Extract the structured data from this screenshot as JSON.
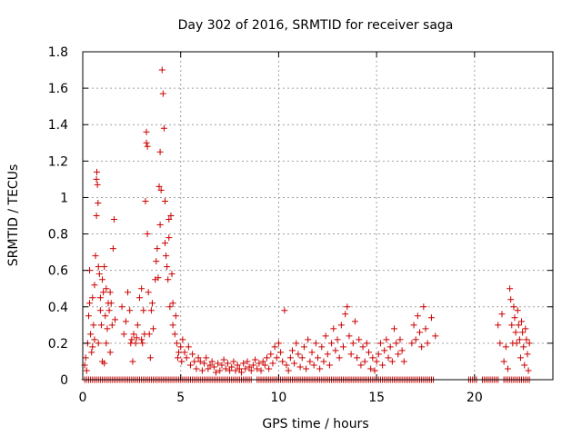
{
  "chart_data": {
    "type": "scatter",
    "title": "Day 302 of 2016, SRMTID for receiver saga",
    "xlabel": "GPS time / hours",
    "ylabel": "SRMTID / TECUs",
    "xlim": [
      0,
      24
    ],
    "ylim": [
      0,
      1.8
    ],
    "xticks": [
      0,
      5,
      10,
      15,
      20
    ],
    "yticks": [
      0,
      0.2,
      0.4,
      0.6,
      0.8,
      1,
      1.2,
      1.4,
      1.6,
      1.8
    ],
    "ytick_labels": [
      "0",
      "0.2",
      "0.4",
      "0.6",
      "0.8",
      "1",
      "1.2",
      "1.4",
      "1.6",
      "1.8"
    ],
    "grid": true,
    "marker": "+",
    "series": [
      {
        "name": "SRMTID",
        "color": "#cc0000",
        "points": [
          [
            0.1,
            0.08
          ],
          [
            0.15,
            0.12
          ],
          [
            0.2,
            0.05
          ],
          [
            0.25,
            0.2
          ],
          [
            0.3,
            0.35
          ],
          [
            0.35,
            0.6
          ],
          [
            0.4,
            0.25
          ],
          [
            0.45,
            0.15
          ],
          [
            0.5,
            0.45
          ],
          [
            0.55,
            0.3
          ],
          [
            0.6,
            0.22
          ],
          [
            0.6,
            0.52
          ],
          [
            0.65,
            0.68
          ],
          [
            0.7,
            0.9
          ],
          [
            0.7,
            1.1
          ],
          [
            0.72,
            1.14
          ],
          [
            0.75,
            1.07
          ],
          [
            0.78,
            0.97
          ],
          [
            0.8,
            0.62
          ],
          [
            0.85,
            0.58
          ],
          [
            0.9,
            0.45
          ],
          [
            0.9,
            0.38
          ],
          [
            0.95,
            0.3
          ],
          [
            1.0,
            0.55
          ],
          [
            1.05,
            0.48
          ],
          [
            1.1,
            0.62
          ],
          [
            1.15,
            0.35
          ],
          [
            1.2,
            0.5
          ],
          [
            1.25,
            0.28
          ],
          [
            1.3,
            0.42
          ],
          [
            1.35,
            0.38
          ],
          [
            1.4,
            0.48
          ],
          [
            1.5,
            0.3
          ],
          [
            1.55,
            0.72
          ],
          [
            1.6,
            0.88
          ],
          [
            1.65,
            0.33
          ],
          [
            0.35,
            0.42
          ],
          [
            0.5,
            0.18
          ],
          [
            0.8,
            0.2
          ],
          [
            1.0,
            0.1
          ],
          [
            1.1,
            0.09
          ],
          [
            1.2,
            0.2
          ],
          [
            1.4,
            0.15
          ],
          [
            1.45,
            0.42
          ],
          [
            2.0,
            0.4
          ],
          [
            2.1,
            0.25
          ],
          [
            2.2,
            0.32
          ],
          [
            2.3,
            0.48
          ],
          [
            2.4,
            0.38
          ],
          [
            2.45,
            0.2
          ],
          [
            2.5,
            0.22
          ],
          [
            2.55,
            0.1
          ],
          [
            2.6,
            0.25
          ],
          [
            2.7,
            0.2
          ],
          [
            2.75,
            0.23
          ],
          [
            2.8,
            0.3
          ],
          [
            2.9,
            0.45
          ],
          [
            3.0,
            0.22
          ],
          [
            3.0,
            0.5
          ],
          [
            3.05,
            0.2
          ],
          [
            3.1,
            0.38
          ],
          [
            3.15,
            0.25
          ],
          [
            3.2,
            0.98
          ],
          [
            3.25,
            1.36
          ],
          [
            3.25,
            1.3
          ],
          [
            3.3,
            1.28
          ],
          [
            3.3,
            0.8
          ],
          [
            3.35,
            0.48
          ],
          [
            3.4,
            0.25
          ],
          [
            3.45,
            0.12
          ],
          [
            3.5,
            0.38
          ],
          [
            3.55,
            0.42
          ],
          [
            3.6,
            0.28
          ],
          [
            3.7,
            0.55
          ],
          [
            3.75,
            0.65
          ],
          [
            3.8,
            0.72
          ],
          [
            3.85,
            0.56
          ],
          [
            3.9,
            1.06
          ],
          [
            3.95,
            1.25
          ],
          [
            3.95,
            0.85
          ],
          [
            4.0,
            1.04
          ],
          [
            4.05,
            1.7
          ],
          [
            4.1,
            1.57
          ],
          [
            4.15,
            1.38
          ],
          [
            4.2,
            0.98
          ],
          [
            4.2,
            0.75
          ],
          [
            4.25,
            0.68
          ],
          [
            4.3,
            0.62
          ],
          [
            4.35,
            0.55
          ],
          [
            4.4,
            0.88
          ],
          [
            4.4,
            0.78
          ],
          [
            4.45,
            0.4
          ],
          [
            4.5,
            0.9
          ],
          [
            4.55,
            0.58
          ],
          [
            4.6,
            0.42
          ],
          [
            4.6,
            0.3
          ],
          [
            4.7,
            0.25
          ],
          [
            4.75,
            0.35
          ],
          [
            4.8,
            0.2
          ],
          [
            4.85,
            0.12
          ],
          [
            4.9,
            0.15
          ],
          [
            5.0,
            0.18
          ],
          [
            5.05,
            0.1
          ],
          [
            5.1,
            0.22
          ],
          [
            5.2,
            0.15
          ],
          [
            5.3,
            0.12
          ],
          [
            5.4,
            0.18
          ],
          [
            5.5,
            0.08
          ],
          [
            5.6,
            0.14
          ],
          [
            5.7,
            0.1
          ],
          [
            5.8,
            0.06
          ],
          [
            5.9,
            0.12
          ],
          [
            6.0,
            0.1
          ],
          [
            6.1,
            0.05
          ],
          [
            6.2,
            0.09
          ],
          [
            6.3,
            0.12
          ],
          [
            6.4,
            0.06
          ],
          [
            6.5,
            0.08
          ],
          [
            6.6,
            0.1
          ],
          [
            6.7,
            0.07
          ],
          [
            6.8,
            0.04
          ],
          [
            6.9,
            0.09
          ],
          [
            7.0,
            0.05
          ],
          [
            7.1,
            0.08
          ],
          [
            7.2,
            0.11
          ],
          [
            7.3,
            0.06
          ],
          [
            7.4,
            0.09
          ],
          [
            7.5,
            0.05
          ],
          [
            7.6,
            0.07
          ],
          [
            7.7,
            0.1
          ],
          [
            7.8,
            0.05
          ],
          [
            7.9,
            0.08
          ],
          [
            8.0,
            0.06
          ],
          [
            8.1,
            0.04
          ],
          [
            8.2,
            0.09
          ],
          [
            8.3,
            0.06
          ],
          [
            8.4,
            0.1
          ],
          [
            8.5,
            0.07
          ],
          [
            8.6,
            0.05
          ],
          [
            8.7,
            0.08
          ],
          [
            8.8,
            0.11
          ],
          [
            8.9,
            0.06
          ],
          [
            9.0,
            0.09
          ],
          [
            9.1,
            0.05
          ],
          [
            9.2,
            0.1
          ],
          [
            9.3,
            0.08
          ],
          [
            9.4,
            0.12
          ],
          [
            9.5,
            0.06
          ],
          [
            9.6,
            0.14
          ],
          [
            9.7,
            0.09
          ],
          [
            9.8,
            0.18
          ],
          [
            9.9,
            0.12
          ],
          [
            10.0,
            0.2
          ],
          [
            10.1,
            0.15
          ],
          [
            10.2,
            0.1
          ],
          [
            10.3,
            0.38
          ],
          [
            10.4,
            0.08
          ],
          [
            10.5,
            0.05
          ],
          [
            10.6,
            0.12
          ],
          [
            10.7,
            0.16
          ],
          [
            10.8,
            0.09
          ],
          [
            10.9,
            0.2
          ],
          [
            11.0,
            0.14
          ],
          [
            11.1,
            0.07
          ],
          [
            11.2,
            0.12
          ],
          [
            11.3,
            0.18
          ],
          [
            11.4,
            0.06
          ],
          [
            11.5,
            0.22
          ],
          [
            11.6,
            0.1
          ],
          [
            11.7,
            0.15
          ],
          [
            11.8,
            0.08
          ],
          [
            11.9,
            0.2
          ],
          [
            12.0,
            0.12
          ],
          [
            12.1,
            0.06
          ],
          [
            12.2,
            0.18
          ],
          [
            12.3,
            0.1
          ],
          [
            12.4,
            0.24
          ],
          [
            12.5,
            0.14
          ],
          [
            12.6,
            0.08
          ],
          [
            12.7,
            0.2
          ],
          [
            12.8,
            0.28
          ],
          [
            12.9,
            0.16
          ],
          [
            13.0,
            0.22
          ],
          [
            13.1,
            0.12
          ],
          [
            13.2,
            0.3
          ],
          [
            13.3,
            0.18
          ],
          [
            13.4,
            0.36
          ],
          [
            13.5,
            0.4
          ],
          [
            13.6,
            0.24
          ],
          [
            13.7,
            0.14
          ],
          [
            13.8,
            0.2
          ],
          [
            13.9,
            0.32
          ],
          [
            14.0,
            0.12
          ],
          [
            14.1,
            0.22
          ],
          [
            14.2,
            0.08
          ],
          [
            14.3,
            0.18
          ],
          [
            14.4,
            0.1
          ],
          [
            14.5,
            0.2
          ],
          [
            14.6,
            0.15
          ],
          [
            14.7,
            0.06
          ],
          [
            14.8,
            0.12
          ],
          [
            14.9,
            0.05
          ],
          [
            15.0,
            0.1
          ],
          [
            15.1,
            0.14
          ],
          [
            15.2,
            0.2
          ],
          [
            15.3,
            0.08
          ],
          [
            15.4,
            0.16
          ],
          [
            15.5,
            0.22
          ],
          [
            15.6,
            0.12
          ],
          [
            15.7,
            0.18
          ],
          [
            15.8,
            0.1
          ],
          [
            15.9,
            0.28
          ],
          [
            16.0,
            0.2
          ],
          [
            16.1,
            0.14
          ],
          [
            16.2,
            0.22
          ],
          [
            16.3,
            0.16
          ],
          [
            16.4,
            0.1
          ],
          [
            16.8,
            0.2
          ],
          [
            16.9,
            0.3
          ],
          [
            17.0,
            0.22
          ],
          [
            17.1,
            0.35
          ],
          [
            17.2,
            0.26
          ],
          [
            17.3,
            0.18
          ],
          [
            17.4,
            0.4
          ],
          [
            17.5,
            0.28
          ],
          [
            17.6,
            0.2
          ],
          [
            17.8,
            0.34
          ],
          [
            18.0,
            0.24
          ],
          [
            21.2,
            0.3
          ],
          [
            21.3,
            0.2
          ],
          [
            21.4,
            0.36
          ],
          [
            21.5,
            0.1
          ],
          [
            21.6,
            0.18
          ],
          [
            21.7,
            0.06
          ],
          [
            21.8,
            0.5
          ],
          [
            21.85,
            0.44
          ],
          [
            21.9,
            0.3
          ],
          [
            21.95,
            0.2
          ],
          [
            22.0,
            0.4
          ],
          [
            22.05,
            0.34
          ],
          [
            22.1,
            0.26
          ],
          [
            22.15,
            0.2
          ],
          [
            22.2,
            0.38
          ],
          [
            22.25,
            0.3
          ],
          [
            22.3,
            0.22
          ],
          [
            22.35,
            0.12
          ],
          [
            22.4,
            0.32
          ],
          [
            22.45,
            0.26
          ],
          [
            22.5,
            0.18
          ],
          [
            22.55,
            0.08
          ],
          [
            22.6,
            0.28
          ],
          [
            22.65,
            0.22
          ],
          [
            22.7,
            0.14
          ],
          [
            22.75,
            0.05
          ],
          [
            22.8,
            0.2
          ]
        ],
        "zero_runs": [
          [
            0.1,
            8.6
          ],
          [
            8.9,
            17.9
          ],
          [
            19.7,
            20.1
          ],
          [
            20.4,
            21.2
          ],
          [
            21.5,
            22.8
          ]
        ]
      }
    ]
  }
}
